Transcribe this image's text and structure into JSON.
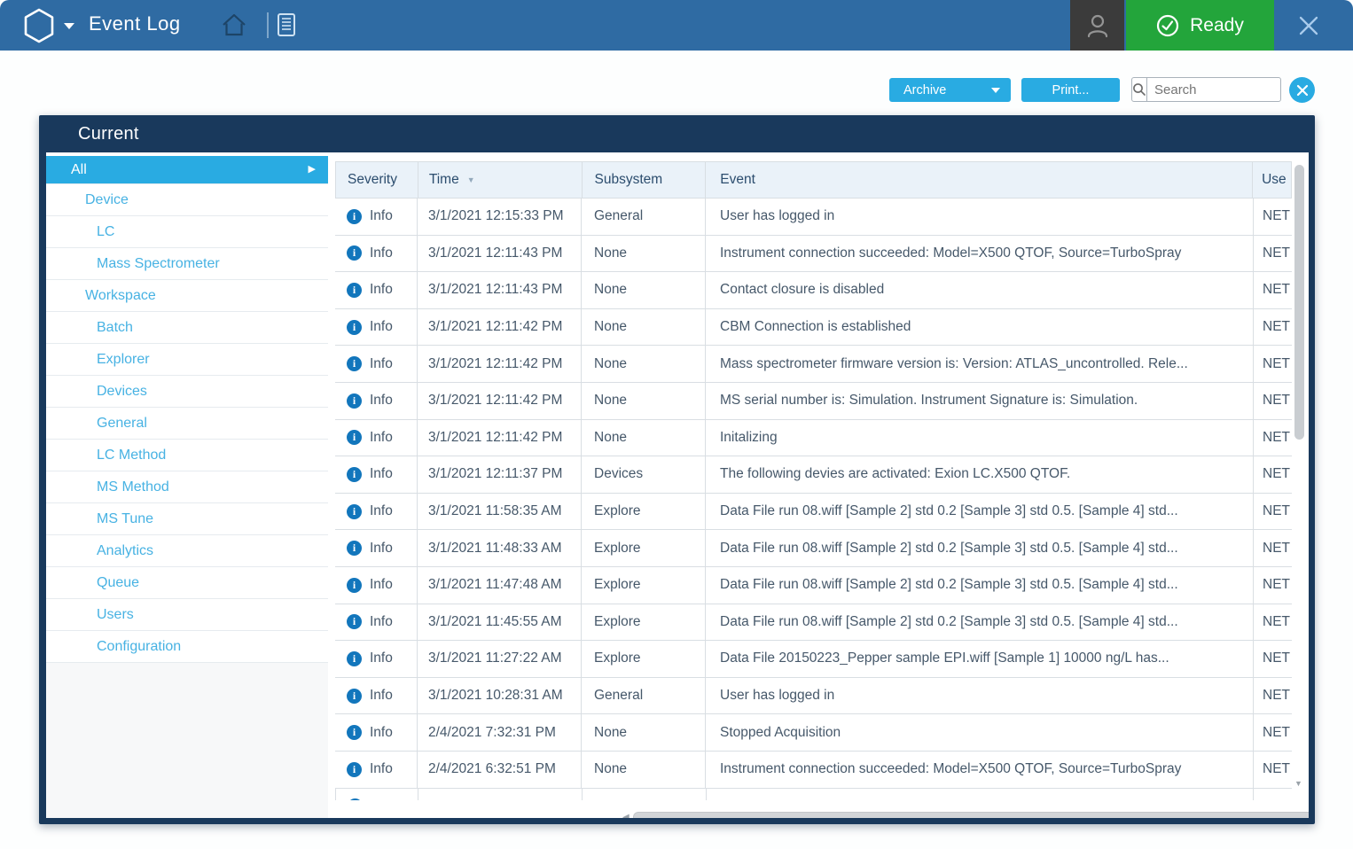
{
  "titlebar": {
    "app_title": "Event Log",
    "ready_label": "Ready"
  },
  "toolbar": {
    "archive_label": "Archive",
    "print_label": "Print...",
    "search_placeholder": "Search"
  },
  "panel": {
    "header": "Current",
    "tree": [
      {
        "label": "All",
        "level": 0,
        "selected": true
      },
      {
        "label": "Device",
        "level": 1
      },
      {
        "label": "LC",
        "level": 2
      },
      {
        "label": "Mass Spectrometer",
        "level": 2
      },
      {
        "label": "Workspace",
        "level": 1
      },
      {
        "label": "Batch",
        "level": 2
      },
      {
        "label": "Explorer",
        "level": 2
      },
      {
        "label": "Devices",
        "level": 2
      },
      {
        "label": "General",
        "level": 2
      },
      {
        "label": "LC Method",
        "level": 2
      },
      {
        "label": "MS Method",
        "level": 2
      },
      {
        "label": "MS Tune",
        "level": 2
      },
      {
        "label": "Analytics",
        "level": 2
      },
      {
        "label": "Queue",
        "level": 2
      },
      {
        "label": "Users",
        "level": 2
      },
      {
        "label": "Configuration",
        "level": 2
      }
    ]
  },
  "table": {
    "columns": {
      "severity": "Severity",
      "time": "Time",
      "subsystem": "Subsystem",
      "event": "Event",
      "user": "Use"
    },
    "sort_column": "time",
    "rows": [
      {
        "severity": "Info",
        "time": "3/1/2021 12:15:33 PM",
        "subsystem": "General",
        "event": "User has logged in",
        "user": "NET"
      },
      {
        "severity": "Info",
        "time": "3/1/2021 12:11:43 PM",
        "subsystem": "None",
        "event": "Instrument connection succeeded: Model=X500 QTOF, Source=TurboSpray",
        "user": "NET"
      },
      {
        "severity": "Info",
        "time": "3/1/2021 12:11:43 PM",
        "subsystem": "None",
        "event": "Contact closure is disabled",
        "user": "NET"
      },
      {
        "severity": "Info",
        "time": "3/1/2021 12:11:42 PM",
        "subsystem": "None",
        "event": "CBM Connection is established",
        "user": "NET"
      },
      {
        "severity": "Info",
        "time": "3/1/2021 12:11:42 PM",
        "subsystem": "None",
        "event": "Mass spectrometer firmware version is: Version: ATLAS_uncontrolled. Rele...",
        "user": "NET"
      },
      {
        "severity": "Info",
        "time": "3/1/2021 12:11:42 PM",
        "subsystem": "None",
        "event": "MS serial number is: Simulation. Instrument Signature is: Simulation.",
        "user": "NET"
      },
      {
        "severity": "Info",
        "time": "3/1/2021 12:11:42 PM",
        "subsystem": "None",
        "event": "Initalizing",
        "user": "NET"
      },
      {
        "severity": "Info",
        "time": "3/1/2021 12:11:37 PM",
        "subsystem": "Devices",
        "event": "The following devies are activated: Exion LC.X500 QTOF.",
        "user": "NET"
      },
      {
        "severity": "Info",
        "time": "3/1/2021 11:58:35 AM",
        "subsystem": "Explore",
        "event": "Data File run 08.wiff [Sample 2] std 0.2 [Sample 3] std 0.5. [Sample 4] std...",
        "user": "NET"
      },
      {
        "severity": "Info",
        "time": "3/1/2021 11:48:33 AM",
        "subsystem": "Explore",
        "event": "Data File run 08.wiff [Sample 2] std 0.2 [Sample 3] std 0.5. [Sample 4] std...",
        "user": "NET"
      },
      {
        "severity": "Info",
        "time": "3/1/2021 11:47:48 AM",
        "subsystem": "Explore",
        "event": "Data File run 08.wiff [Sample 2] std 0.2 [Sample 3] std 0.5. [Sample 4] std...",
        "user": "NET"
      },
      {
        "severity": "Info",
        "time": "3/1/2021 11:45:55 AM",
        "subsystem": "Explore",
        "event": "Data File run 08.wiff [Sample 2] std 0.2 [Sample 3] std 0.5. [Sample 4] std...",
        "user": "NET"
      },
      {
        "severity": "Info",
        "time": "3/1/2021 11:27:22 AM",
        "subsystem": "Explore",
        "event": "Data File 20150223_Pepper sample EPI.wiff [Sample 1] 10000 ng/L has...",
        "user": "NET"
      },
      {
        "severity": "Info",
        "time": "3/1/2021 10:28:31 AM",
        "subsystem": "General",
        "event": "User has logged in",
        "user": "NET"
      },
      {
        "severity": "Info",
        "time": "2/4/2021 7:32:31 PM",
        "subsystem": "None",
        "event": "Stopped Acquisition",
        "user": "NET"
      },
      {
        "severity": "Info",
        "time": "2/4/2021 6:32:51 PM",
        "subsystem": "None",
        "event": "Instrument connection succeeded: Model=X500 QTOF, Source=TurboSpray",
        "user": "NET"
      }
    ]
  },
  "colors": {
    "titlebar_blue": "#2f6ba3",
    "navy": "#19395c",
    "accent_cyan": "#29abe2",
    "ready_green": "#23a53b",
    "info_blue": "#1276bc",
    "header_bg": "#eaf2f9"
  }
}
